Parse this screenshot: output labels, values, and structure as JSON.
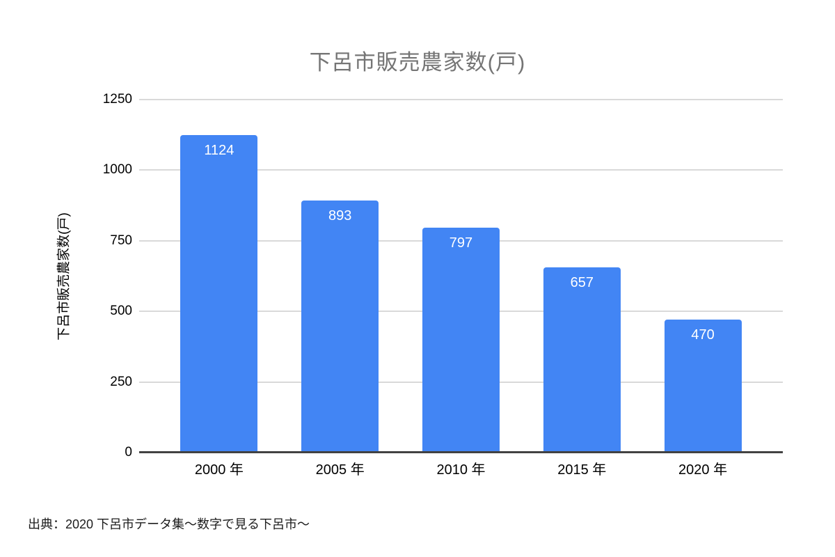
{
  "chart_data": {
    "type": "bar",
    "title": "下呂市販売農家数(戸)",
    "categories": [
      "2000 年",
      "2005 年",
      "2010 年",
      "2015 年",
      "2020 年"
    ],
    "values": [
      1124,
      893,
      797,
      657,
      470
    ],
    "xlabel": "",
    "ylabel": "下呂市販売農家数(戸)",
    "ylim": [
      0,
      1250
    ],
    "yticks": [
      0,
      250,
      500,
      750,
      1000,
      1250
    ],
    "grid": "horizontal",
    "legend_position": "none",
    "value_labels": "inside-top",
    "colors": {
      "bar": "#4285f4",
      "value_label": "#ffffff",
      "title": "#757575",
      "axis_text": "#000000",
      "gridline": "#d9d9d9",
      "axis_line": "#424242",
      "background": "#ffffff"
    }
  },
  "source_note": "出典：2020 下呂市データ集〜数字で見る下呂市〜"
}
